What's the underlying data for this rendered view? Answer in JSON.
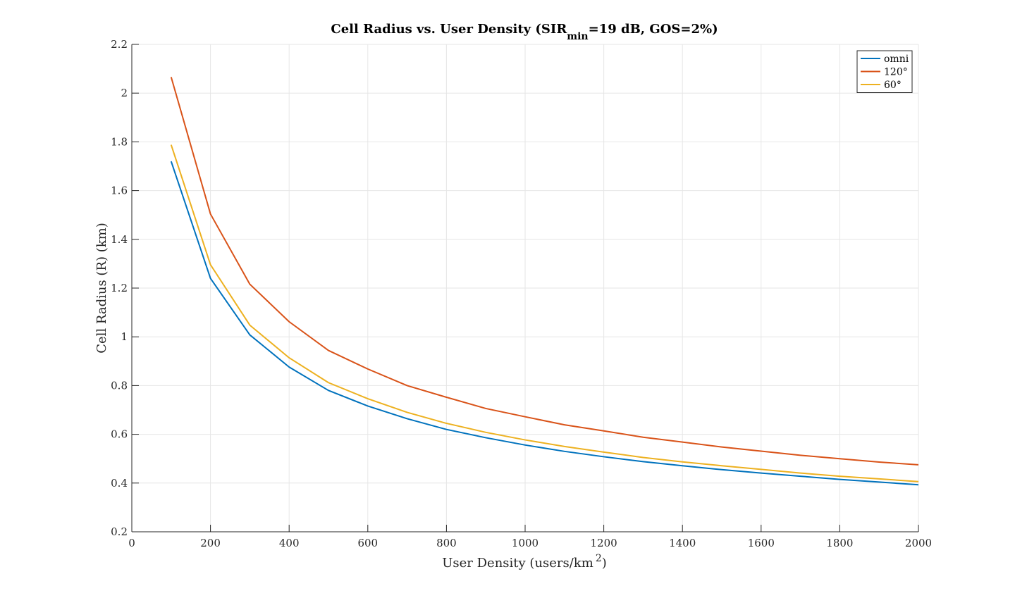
{
  "chart_data": {
    "type": "line",
    "title": {
      "prefix": "Cell Radius vs. User Density (SIR",
      "subscript": "min",
      "suffix": "=19 dB, GOS=2%)"
    },
    "xlabel": {
      "text": "User Density (users/km",
      "superscript": "2",
      "close": ")"
    },
    "ylabel": "Cell Radius (R) (km)",
    "xlim": [
      0,
      2000
    ],
    "ylim": [
      0.2,
      2.2
    ],
    "xticks": [
      0,
      200,
      400,
      600,
      800,
      1000,
      1200,
      1400,
      1600,
      1800,
      2000
    ],
    "yticks": [
      0.2,
      0.4,
      0.6,
      0.8,
      1,
      1.2,
      1.4,
      1.6,
      1.8,
      2,
      2.2
    ],
    "ytick_labels": [
      "0.2",
      "0.4",
      "0.6",
      "0.8",
      "1",
      "1.2",
      "1.4",
      "1.6",
      "1.8",
      "2",
      "2.2"
    ],
    "grid": true,
    "legend_position": "top-right",
    "x": [
      100,
      200,
      300,
      400,
      500,
      600,
      700,
      800,
      900,
      1000,
      1100,
      1200,
      1300,
      1400,
      1500,
      1600,
      1700,
      1800,
      1900,
      2000
    ],
    "series": [
      {
        "name": "omni",
        "color": "#0072BD",
        "values": [
          1.72,
          1.24,
          1.008,
          0.876,
          0.78,
          0.716,
          0.664,
          0.62,
          0.586,
          0.556,
          0.53,
          0.508,
          0.488,
          0.471,
          0.455,
          0.441,
          0.428,
          0.415,
          0.404,
          0.393
        ]
      },
      {
        "name": "120°",
        "color": "#D95319",
        "values": [
          2.066,
          1.504,
          1.216,
          1.062,
          0.944,
          0.868,
          0.8,
          0.752,
          0.706,
          0.672,
          0.639,
          0.614,
          0.588,
          0.568,
          0.548,
          0.531,
          0.514,
          0.5,
          0.486,
          0.475
        ]
      },
      {
        "name": "60°",
        "color": "#EDB120",
        "values": [
          1.788,
          1.296,
          1.048,
          0.914,
          0.812,
          0.746,
          0.69,
          0.645,
          0.608,
          0.577,
          0.55,
          0.527,
          0.505,
          0.487,
          0.471,
          0.456,
          0.441,
          0.428,
          0.417,
          0.406
        ]
      }
    ]
  }
}
